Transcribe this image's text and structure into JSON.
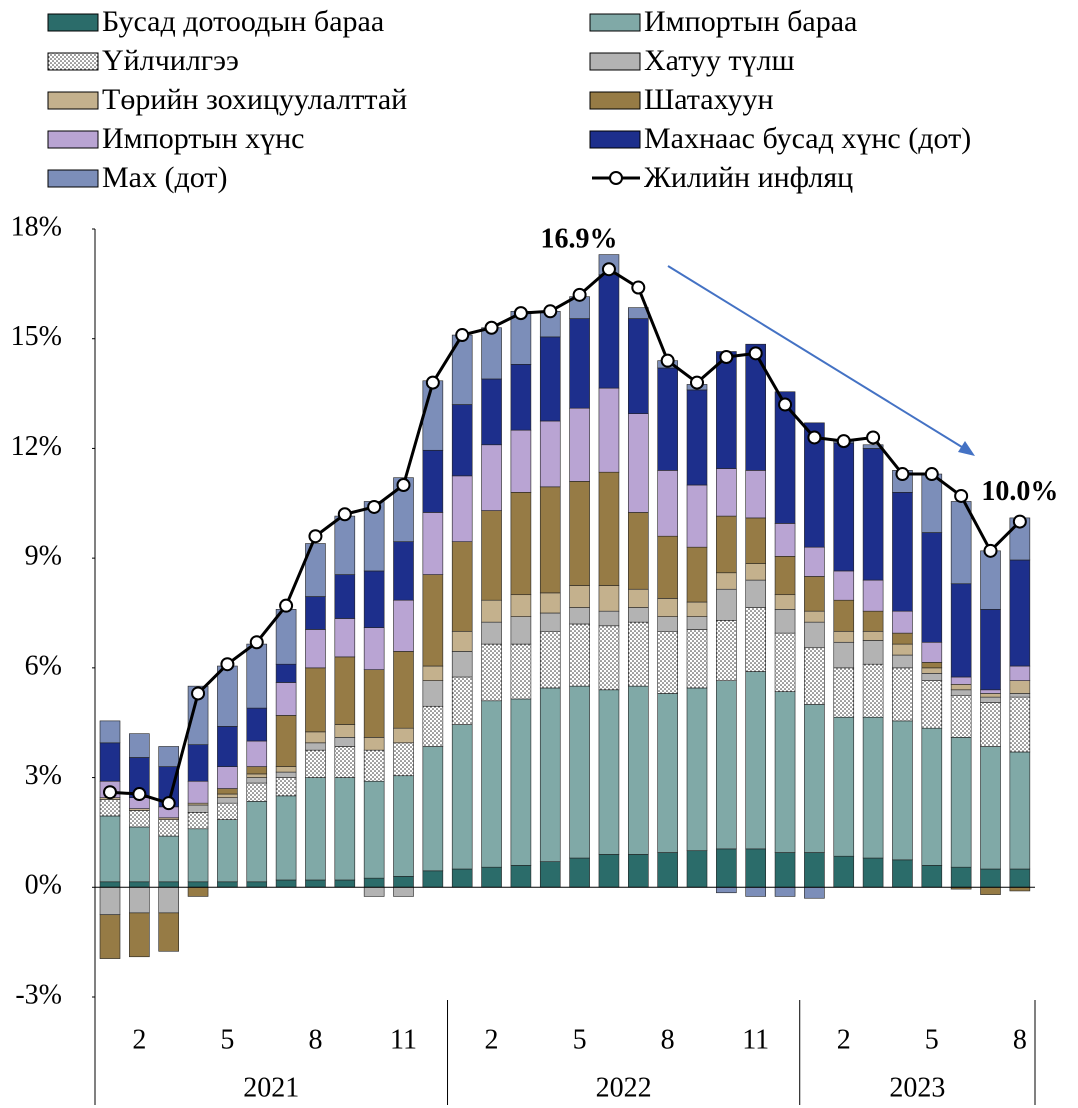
{
  "chart_data": {
    "type": "stacked_bar_line",
    "categories": [
      null,
      "2",
      null,
      null,
      "5",
      null,
      null,
      "8",
      null,
      null,
      "11",
      null,
      null,
      "2",
      null,
      null,
      "5",
      null,
      null,
      "8",
      null,
      null,
      "11",
      null,
      null,
      "2",
      null,
      null,
      "5",
      null,
      null,
      "8"
    ],
    "x_groups": [
      {
        "label": "2021",
        "span": 12
      },
      {
        "label": "2022",
        "span": 12
      },
      {
        "label": "2023",
        "span": 8
      }
    ],
    "ylim": [
      -3,
      18
    ],
    "yticks": [
      {
        "value": -3,
        "label": "-3%"
      },
      {
        "value": 0,
        "label": "0%"
      },
      {
        "value": 3,
        "label": "3%"
      },
      {
        "value": 6,
        "label": "6%"
      },
      {
        "value": 9,
        "label": "9%"
      },
      {
        "value": 12,
        "label": "12%"
      },
      {
        "value": 15,
        "label": "15%"
      },
      {
        "value": 18,
        "label": "18%"
      }
    ],
    "series": [
      {
        "name": "Бусад дотоодын бараа",
        "color": "#2b6c6a",
        "values": [
          0.15,
          0.15,
          0.15,
          0.15,
          0.15,
          0.15,
          0.2,
          0.2,
          0.2,
          0.25,
          0.3,
          0.45,
          0.5,
          0.55,
          0.6,
          0.7,
          0.8,
          0.9,
          0.9,
          0.95,
          1.0,
          1.05,
          1.05,
          0.95,
          0.95,
          0.85,
          0.8,
          0.75,
          0.6,
          0.55,
          0.5,
          0.5
        ]
      },
      {
        "name": "Импортын бараа",
        "color": "#80a9a7",
        "values": [
          1.8,
          1.5,
          1.25,
          1.45,
          1.7,
          2.2,
          2.3,
          2.8,
          2.8,
          2.65,
          2.75,
          3.4,
          3.95,
          4.55,
          4.55,
          4.75,
          4.7,
          4.5,
          4.6,
          4.35,
          4.45,
          4.6,
          4.85,
          4.4,
          4.05,
          3.8,
          3.85,
          3.8,
          3.75,
          3.55,
          3.35,
          3.2
        ]
      },
      {
        "name": "Үйлчилгээ",
        "color": "pattern",
        "values": [
          0.45,
          0.45,
          0.45,
          0.45,
          0.45,
          0.5,
          0.5,
          0.75,
          0.85,
          0.85,
          0.9,
          1.1,
          1.3,
          1.55,
          1.5,
          1.55,
          1.7,
          1.75,
          1.75,
          1.7,
          1.6,
          1.65,
          1.75,
          1.6,
          1.55,
          1.35,
          1.45,
          1.45,
          1.3,
          1.15,
          1.2,
          1.5
        ]
      },
      {
        "name": "Хатуу түлш",
        "color": "#b3b3b3",
        "values": [
          -0.75,
          -0.7,
          -0.7,
          0.2,
          0.15,
          0.15,
          0.15,
          0.2,
          0.25,
          -0.25,
          -0.25,
          0.7,
          0.7,
          0.6,
          0.75,
          0.5,
          0.45,
          0.4,
          0.4,
          0.4,
          0.35,
          0.85,
          0.75,
          0.65,
          0.7,
          0.7,
          0.65,
          0.35,
          0.2,
          0.15,
          0.15,
          0.1
        ]
      },
      {
        "name": "Төрийн зохицуулалттай",
        "color": "#c4b18d",
        "values": [
          0.05,
          0.05,
          0.05,
          0.05,
          0.1,
          0.1,
          0.15,
          0.3,
          0.35,
          0.35,
          0.4,
          0.4,
          0.55,
          0.6,
          0.6,
          0.55,
          0.6,
          0.7,
          0.5,
          0.5,
          0.4,
          0.45,
          0.45,
          0.4,
          0.3,
          0.3,
          0.25,
          0.3,
          0.15,
          0.15,
          0.1,
          0.35
        ]
      },
      {
        "name": "Шатахуун",
        "color": "#967b45",
        "values": [
          -1.2,
          -1.2,
          -1.05,
          -0.25,
          0.15,
          0.2,
          1.4,
          1.75,
          1.85,
          1.85,
          2.1,
          2.5,
          2.45,
          2.45,
          2.8,
          2.9,
          2.85,
          3.1,
          2.1,
          1.7,
          1.5,
          1.55,
          1.25,
          1.05,
          0.95,
          0.85,
          0.55,
          0.3,
          0.15,
          -0.05,
          -0.2,
          -0.1
        ]
      },
      {
        "name": "Импортын хүнс",
        "color": "#b9a4d3",
        "values": [
          0.45,
          0.3,
          0.3,
          0.6,
          0.6,
          0.7,
          0.9,
          1.05,
          1.05,
          1.15,
          1.4,
          1.7,
          1.8,
          1.8,
          1.7,
          1.8,
          2.0,
          2.3,
          2.7,
          1.8,
          1.7,
          1.3,
          1.3,
          0.9,
          0.8,
          0.8,
          0.85,
          0.6,
          0.55,
          0.2,
          0.1,
          0.4
        ]
      },
      {
        "name": "Махнаас бусад хүнс (дот)",
        "color": "#1d2f8c",
        "values": [
          1.05,
          1.1,
          1.1,
          1.0,
          1.1,
          0.9,
          0.5,
          0.9,
          1.2,
          1.55,
          1.6,
          1.7,
          1.95,
          1.8,
          1.8,
          2.3,
          2.45,
          3.1,
          2.6,
          2.8,
          2.6,
          3.2,
          3.45,
          3.6,
          3.4,
          3.5,
          3.6,
          3.25,
          3.0,
          2.55,
          2.2,
          2.9
        ]
      },
      {
        "name": "Мах (дот)",
        "color": "#7c8eb9",
        "values": [
          0.6,
          0.65,
          0.55,
          1.6,
          1.65,
          1.75,
          1.5,
          1.45,
          1.6,
          1.9,
          1.75,
          1.9,
          1.9,
          1.4,
          1.45,
          0.7,
          0.6,
          0.55,
          0.3,
          0.2,
          0.15,
          -0.15,
          -0.25,
          -0.25,
          -0.3,
          0.1,
          0.1,
          0.6,
          1.6,
          2.25,
          1.6,
          1.15
        ]
      }
    ],
    "line": {
      "name": "Жилийн инфляц",
      "color": "#000000",
      "values": [
        2.6,
        2.55,
        2.3,
        5.3,
        6.1,
        6.7,
        7.7,
        9.6,
        10.2,
        10.4,
        11.0,
        13.8,
        15.1,
        15.3,
        15.7,
        15.75,
        16.2,
        16.9,
        16.4,
        14.4,
        13.8,
        14.5,
        14.6,
        13.2,
        12.3,
        12.2,
        12.3,
        11.3,
        11.3,
        10.7,
        9.2,
        10.0
      ],
      "value_labels": [
        null,
        null,
        null,
        null,
        null,
        null,
        null,
        null,
        null,
        null,
        null,
        null,
        null,
        null,
        null,
        null,
        null,
        "16.9%",
        null,
        null,
        null,
        null,
        null,
        null,
        null,
        null,
        null,
        null,
        null,
        null,
        null,
        "10.0%"
      ]
    }
  }
}
